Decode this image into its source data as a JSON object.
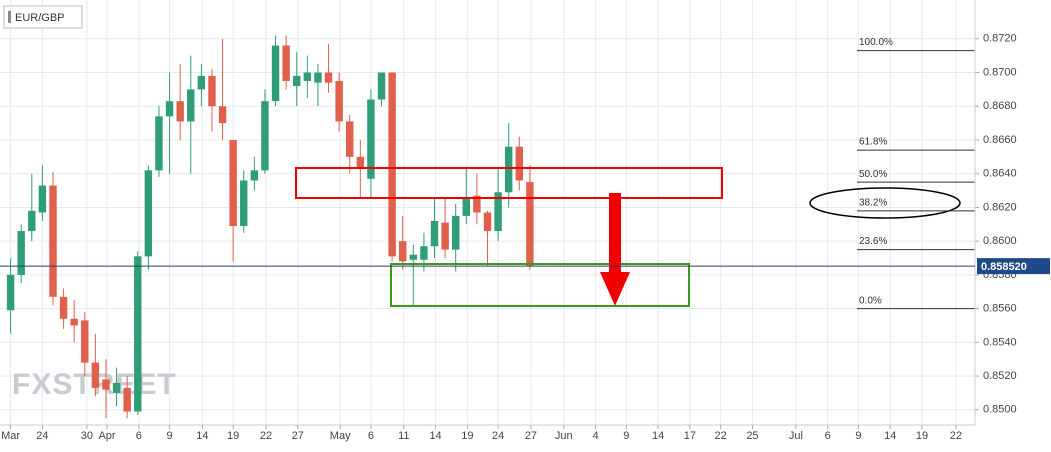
{
  "chart_data": {
    "type": "candlestick",
    "title": "EUR/GBP",
    "watermark": "FXSTREET",
    "up_color": "#2f9e77",
    "down_color": "#e0604b",
    "x": [
      0,
      1,
      2,
      3,
      4,
      5,
      6,
      7,
      8,
      9,
      10,
      11,
      12,
      13,
      14,
      15,
      16,
      17,
      18,
      19,
      20,
      21,
      22,
      23,
      24,
      25,
      26,
      27,
      28,
      29,
      30,
      31,
      32,
      33,
      34,
      35,
      36,
      37,
      38,
      39,
      40,
      41,
      42,
      43,
      44,
      45,
      46,
      47,
      48,
      49
    ],
    "open": [
      0.8559,
      0.858,
      0.8606,
      0.8617,
      0.8633,
      0.8567,
      0.8554,
      0.8553,
      0.8528,
      0.8518,
      0.851,
      0.8513,
      0.8499,
      0.8591,
      0.8642,
      0.8674,
      0.8683,
      0.8671,
      0.869,
      0.8698,
      0.868,
      0.866,
      0.8609,
      0.8636,
      0.8642,
      0.8683,
      0.8716,
      0.8692,
      0.8695,
      0.8694,
      0.87,
      0.8695,
      0.8671,
      0.865,
      0.8637,
      0.8684,
      0.87,
      0.86,
      0.8589,
      0.8589,
      0.8597,
      0.8611,
      0.8595,
      0.8615,
      0.8627,
      0.8617,
      0.8606,
      0.8629,
      0.8656,
      0.8635
    ],
    "high": [
      0.859,
      0.861,
      0.864,
      0.8645,
      0.8641,
      0.8572,
      0.8565,
      0.8558,
      0.8545,
      0.853,
      0.8525,
      0.852,
      0.8594,
      0.8645,
      0.868,
      0.87,
      0.8705,
      0.871,
      0.8705,
      0.8702,
      0.872,
      0.866,
      0.8642,
      0.865,
      0.869,
      0.8722,
      0.8722,
      0.8712,
      0.871,
      0.8705,
      0.8717,
      0.87,
      0.8675,
      0.866,
      0.869,
      0.87,
      0.87,
      0.8615,
      0.8598,
      0.8605,
      0.8625,
      0.8625,
      0.8622,
      0.8643,
      0.864,
      0.8618,
      0.8643,
      0.867,
      0.8662,
      0.8645
    ],
    "low": [
      0.8545,
      0.8575,
      0.86,
      0.8612,
      0.8562,
      0.8548,
      0.854,
      0.852,
      0.8508,
      0.8495,
      0.8502,
      0.8495,
      0.8497,
      0.8583,
      0.8638,
      0.864,
      0.866,
      0.864,
      0.868,
      0.8665,
      0.866,
      0.8588,
      0.8605,
      0.863,
      0.864,
      0.868,
      0.869,
      0.868,
      0.8685,
      0.868,
      0.8688,
      0.8665,
      0.864,
      0.8625,
      0.8625,
      0.868,
      0.8588,
      0.8583,
      0.8562,
      0.8582,
      0.859,
      0.859,
      0.8582,
      0.861,
      0.861,
      0.8585,
      0.86,
      0.862,
      0.863,
      0.8583
    ],
    "close": [
      0.858,
      0.8606,
      0.8618,
      0.8633,
      0.8567,
      0.8554,
      0.855,
      0.8528,
      0.8513,
      0.8512,
      0.8516,
      0.8499,
      0.8591,
      0.8642,
      0.8674,
      0.8683,
      0.8671,
      0.869,
      0.8698,
      0.868,
      0.867,
      0.8609,
      0.8636,
      0.8642,
      0.8683,
      0.8716,
      0.8695,
      0.8698,
      0.87,
      0.87,
      0.8694,
      0.8671,
      0.865,
      0.8644,
      0.8684,
      0.87,
      0.8591,
      0.8588,
      0.8592,
      0.8597,
      0.8612,
      0.8595,
      0.8615,
      0.8625,
      0.8617,
      0.8606,
      0.8629,
      0.8656,
      0.8636,
      0.8585
    ],
    "xlim": [
      -1,
      91
    ],
    "xticks": [
      {
        "value": 0,
        "label": "Mar"
      },
      {
        "value": 3,
        "label": "24"
      },
      {
        "value": 7.2,
        "label": "30"
      },
      {
        "value": 9.1,
        "label": "Apr"
      },
      {
        "value": 12.1,
        "label": "6"
      },
      {
        "value": 15,
        "label": "9"
      },
      {
        "value": 18.1,
        "label": "14"
      },
      {
        "value": 21,
        "label": "19"
      },
      {
        "value": 24.1,
        "label": "22"
      },
      {
        "value": 27.1,
        "label": "27"
      },
      {
        "value": 31.1,
        "label": "May"
      },
      {
        "value": 34,
        "label": "6"
      },
      {
        "value": 37.1,
        "label": "11"
      },
      {
        "value": 40.1,
        "label": "14"
      },
      {
        "value": 43.1,
        "label": "19"
      },
      {
        "value": 46,
        "label": "24"
      },
      {
        "value": 49.1,
        "label": "27"
      },
      {
        "value": 52.2,
        "label": "Jun"
      },
      {
        "value": 55.2,
        "label": "4"
      },
      {
        "value": 58.1,
        "label": "9"
      },
      {
        "value": 61.1,
        "label": "14"
      },
      {
        "value": 64.1,
        "label": "17"
      },
      {
        "value": 67,
        "label": "22"
      },
      {
        "value": 70,
        "label": "25"
      },
      {
        "value": 74.1,
        "label": "Jul"
      },
      {
        "value": 77.1,
        "label": "6"
      },
      {
        "value": 80,
        "label": "9"
      },
      {
        "value": 83,
        "label": "14"
      },
      {
        "value": 86,
        "label": "19"
      },
      {
        "value": 89.2,
        "label": "22"
      }
    ],
    "ylim": [
      0.8491,
      0.8743
    ],
    "yticks": [
      {
        "value": 0.872,
        "label": "0.8720"
      },
      {
        "value": 0.87,
        "label": "0.8700"
      },
      {
        "value": 0.868,
        "label": "0.8680"
      },
      {
        "value": 0.866,
        "label": "0.8660"
      },
      {
        "value": 0.864,
        "label": "0.8640"
      },
      {
        "value": 0.862,
        "label": "0.8620"
      },
      {
        "value": 0.86,
        "label": "0.8600"
      },
      {
        "value": 0.858,
        "label": "0.8580"
      },
      {
        "value": 0.856,
        "label": "0.8560"
      },
      {
        "value": 0.854,
        "label": "0.8540"
      },
      {
        "value": 0.852,
        "label": "0.8520"
      },
      {
        "value": 0.85,
        "label": "0.8500"
      }
    ],
    "grid": true,
    "last_price": {
      "value": 0.85852,
      "label": "0.858520"
    },
    "fib_levels": [
      {
        "value": 0.8713,
        "label": "100.0%"
      },
      {
        "value": 0.8654,
        "label": "61.8%"
      },
      {
        "value": 0.8635,
        "label": "50.0%"
      },
      {
        "value": 0.8618,
        "label": "38.2%"
      },
      {
        "value": 0.8595,
        "label": "23.6%"
      },
      {
        "value": 0.856,
        "label": "0.0%"
      }
    ]
  }
}
